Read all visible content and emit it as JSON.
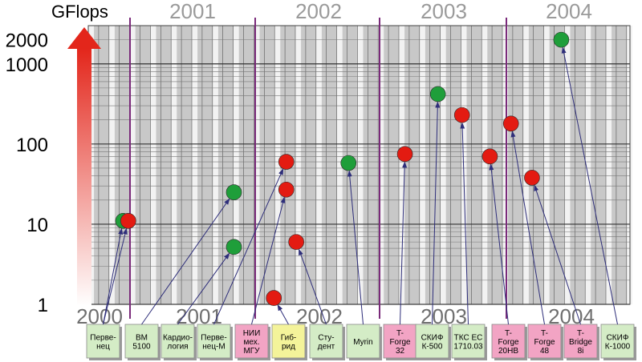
{
  "chart_data": {
    "type": "scatter",
    "title": "",
    "ylabel": "GFlops",
    "yscale": "log",
    "ylim": [
      1,
      3000
    ],
    "yticks": [
      "1",
      "10",
      "100",
      "1000",
      "2000"
    ],
    "grid": true,
    "years": [
      "2000",
      "2001",
      "2002",
      "2003",
      "2004"
    ],
    "top_years": [
      "2001",
      "2002",
      "2003",
      "2004"
    ],
    "bottom_years": [
      "2000",
      "2001",
      "2002",
      "2003",
      "2004"
    ],
    "colors": {
      "green": "#1f9e3a",
      "red": "#e31b12",
      "arrow": "#2e2e7a",
      "box_green": "#d4ecc6",
      "box_pink": "#f2a4c4",
      "box_yellow": "#f4f39a"
    },
    "systems": [
      {
        "label": [
          "Перве-",
          "нец"
        ],
        "box_color": "green"
      },
      {
        "label": [
          "BM",
          "5100"
        ],
        "box_color": "green"
      },
      {
        "label": [
          "Кардио-",
          "логия"
        ],
        "box_color": "green"
      },
      {
        "label": [
          "Перве-",
          "нец-М"
        ],
        "box_color": "green"
      },
      {
        "label": [
          "НИИ",
          "мех.",
          "МГУ"
        ],
        "box_color": "pink"
      },
      {
        "label": [
          "Гиб-",
          "рид"
        ],
        "box_color": "yellow"
      },
      {
        "label": [
          "Сту-",
          "дент"
        ],
        "box_color": "green"
      },
      {
        "label": [
          "Myrin"
        ],
        "box_color": "green"
      },
      {
        "label": [
          "T-",
          "Forge",
          "32"
        ],
        "box_color": "pink"
      },
      {
        "label": [
          "СКИФ",
          "К-500"
        ],
        "box_color": "green"
      },
      {
        "label": [
          "ТКС ЕС",
          "1710.03"
        ],
        "box_color": "green"
      },
      {
        "label": [
          "T-",
          "Forge",
          "20HB"
        ],
        "box_color": "pink"
      },
      {
        "label": [
          "T-",
          "Forge",
          "48"
        ],
        "box_color": "pink"
      },
      {
        "label": [
          "T-",
          "Bridge",
          "8i"
        ],
        "box_color": "pink"
      },
      {
        "label": [
          "СКИФ",
          "К-1000"
        ],
        "box_color": "green"
      }
    ],
    "points": [
      {
        "color": "green",
        "x": 2000.92,
        "y": 11,
        "system": 0
      },
      {
        "color": "red",
        "x": 2000.98,
        "y": 11,
        "system": 0
      },
      {
        "color": "green",
        "x": 2001.83,
        "y": 25,
        "system": 1
      },
      {
        "color": "green",
        "x": 2001.83,
        "y": 5.2,
        "system": 2
      },
      {
        "color": "red",
        "x": 2002.25,
        "y": 60,
        "system": 3
      },
      {
        "color": "red",
        "x": 2002.25,
        "y": 27,
        "system": 4
      },
      {
        "color": "red",
        "x": 2002.15,
        "y": 1.2,
        "system": 5
      },
      {
        "color": "red",
        "x": 2002.33,
        "y": 6,
        "system": 6
      },
      {
        "color": "green",
        "x": 2002.75,
        "y": 58,
        "system": 7
      },
      {
        "color": "red",
        "x": 2003.2,
        "y": 75,
        "system": 8
      },
      {
        "color": "green",
        "x": 2003.46,
        "y": 420,
        "system": 9
      },
      {
        "color": "red",
        "x": 2003.65,
        "y": 230,
        "system": 10
      },
      {
        "color": "red",
        "x": 2003.87,
        "y": 70,
        "system": 11
      },
      {
        "color": "red",
        "x": 2004.05,
        "y": 180,
        "system": 12
      },
      {
        "color": "red",
        "x": 2004.28,
        "y": 38,
        "system": 13
      },
      {
        "color": "green",
        "x": 2004.6,
        "y": 2000,
        "system": 14
      }
    ]
  }
}
